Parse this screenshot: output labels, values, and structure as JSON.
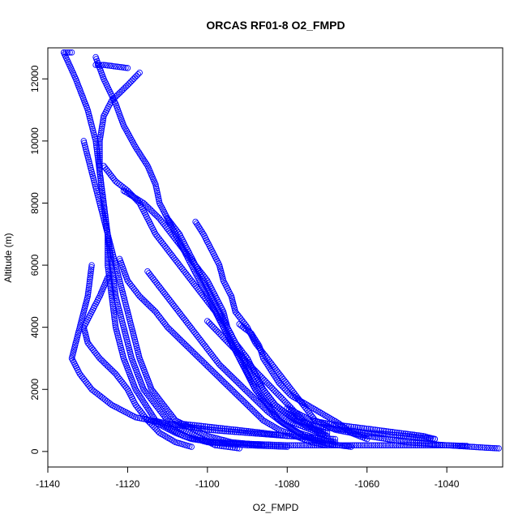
{
  "chart_data": {
    "type": "scatter",
    "title": "ORCAS RF01-8 O2_FMPD",
    "xlabel": "O2_FMPD",
    "ylabel": "Altitude (m)",
    "xlim": [
      -1140,
      -1026
    ],
    "ylim": [
      -500,
      13000
    ],
    "x_ticks": [
      -1140,
      -1120,
      -1100,
      -1080,
      -1060,
      -1040
    ],
    "y_ticks": [
      0,
      2000,
      4000,
      6000,
      8000,
      10000,
      12000
    ],
    "x_tick_labels": [
      "-1140",
      "-1120",
      "-1100",
      "-1080",
      "-1060",
      "-1040"
    ],
    "y_tick_labels": [
      "0",
      "2000",
      "4000",
      "6000",
      "8000",
      "10000",
      "12000"
    ],
    "marker": "open-circle",
    "color": "#0000ff",
    "grid": false,
    "legend": "none",
    "series": [
      {
        "profiles": [
          [
            [
              -1136,
              12850
            ],
            [
              -1133,
              12000
            ],
            [
              -1130,
              11000
            ],
            [
              -1128,
              10000
            ],
            [
              -1127,
              9000
            ],
            [
              -1126,
              8000
            ],
            [
              -1125,
              7000
            ],
            [
              -1124,
              6000
            ],
            [
              -1123,
              5000
            ],
            [
              -1121,
              4000
            ],
            [
              -1119,
              3000
            ],
            [
              -1116,
              2000
            ],
            [
              -1110,
              1000
            ],
            [
              -1103,
              500
            ],
            [
              -1098,
              200
            ],
            [
              -1092,
              100
            ]
          ],
          [
            [
              -1128,
              12700
            ],
            [
              -1126,
              12000
            ],
            [
              -1123,
              11200
            ],
            [
              -1121,
              10500
            ],
            [
              -1118,
              9800
            ],
            [
              -1115,
              9200
            ],
            [
              -1113,
              8600
            ],
            [
              -1112,
              8000
            ],
            [
              -1108,
              7000
            ],
            [
              -1104,
              6000
            ],
            [
              -1100,
              5000
            ],
            [
              -1096,
              4000
            ],
            [
              -1092,
              3000
            ],
            [
              -1088,
              2000
            ],
            [
              -1082,
              1000
            ],
            [
              -1076,
              500
            ],
            [
              -1070,
              250
            ],
            [
              -1064,
              150
            ]
          ],
          [
            [
              -1117,
              12200
            ],
            [
              -1120,
              11800
            ],
            [
              -1124,
              11300
            ],
            [
              -1126,
              10800
            ],
            [
              -1127,
              10000
            ],
            [
              -1127,
              9000
            ],
            [
              -1126,
              8000
            ],
            [
              -1125,
              7000
            ],
            [
              -1125,
              6000
            ],
            [
              -1124,
              5000
            ],
            [
              -1123,
              4000
            ],
            [
              -1121,
              3000
            ],
            [
              -1118,
              2000
            ],
            [
              -1113,
              1000
            ],
            [
              -1106,
              500
            ],
            [
              -1100,
              300
            ],
            [
              -1090,
              200
            ],
            [
              -1080,
              150
            ]
          ],
          [
            [
              -1131,
              10000
            ],
            [
              -1129,
              9000
            ],
            [
              -1127,
              8000
            ],
            [
              -1125,
              7000
            ],
            [
              -1123,
              6000
            ],
            [
              -1121,
              5000
            ],
            [
              -1119,
              4000
            ],
            [
              -1117,
              3000
            ],
            [
              -1114,
              2000
            ],
            [
              -1108,
              1000
            ],
            [
              -1100,
              500
            ],
            [
              -1094,
              300
            ],
            [
              -1086,
              200
            ]
          ],
          [
            [
              -1126,
              9200
            ],
            [
              -1123,
              8700
            ],
            [
              -1120,
              8400
            ],
            [
              -1117,
              8000
            ],
            [
              -1115,
              7500
            ],
            [
              -1113,
              7000
            ],
            [
              -1110,
              6500
            ],
            [
              -1107,
              6000
            ],
            [
              -1104,
              5500
            ],
            [
              -1101,
              5000
            ],
            [
              -1098,
              4500
            ],
            [
              -1096,
              4000
            ],
            [
              -1094,
              3500
            ],
            [
              -1092,
              3000
            ],
            [
              -1090,
              2500
            ],
            [
              -1088,
              2000
            ],
            [
              -1085,
              1500
            ],
            [
              -1080,
              1000
            ],
            [
              -1074,
              700
            ],
            [
              -1070,
              500
            ]
          ],
          [
            [
              -1121,
              8400
            ],
            [
              -1116,
              8000
            ],
            [
              -1112,
              7500
            ],
            [
              -1109,
              7000
            ],
            [
              -1106,
              6500
            ],
            [
              -1103,
              6000
            ],
            [
              -1100,
              5500
            ],
            [
              -1098,
              5000
            ],
            [
              -1096,
              4500
            ],
            [
              -1095,
              4000
            ],
            [
              -1093,
              3500
            ],
            [
              -1090,
              3000
            ],
            [
              -1088,
              2500
            ],
            [
              -1086,
              2000
            ],
            [
              -1083,
              1500
            ],
            [
              -1078,
              1000
            ],
            [
              -1072,
              800
            ],
            [
              -1066,
              700
            ],
            [
              -1060,
              600
            ],
            [
              -1050,
              500
            ],
            [
              -1043,
              400
            ]
          ],
          [
            [
              -1110,
              7500
            ],
            [
              -1107,
              7000
            ],
            [
              -1105,
              6500
            ],
            [
              -1103,
              6000
            ],
            [
              -1101,
              5500
            ],
            [
              -1099,
              5000
            ],
            [
              -1097,
              4500
            ],
            [
              -1095,
              4000
            ],
            [
              -1093,
              3500
            ],
            [
              -1091,
              3000
            ],
            [
              -1089,
              2500
            ],
            [
              -1086,
              2000
            ],
            [
              -1083,
              1500
            ],
            [
              -1080,
              1200
            ],
            [
              -1075,
              800
            ],
            [
              -1070,
              600
            ]
          ],
          [
            [
              -1103,
              7400
            ],
            [
              -1101,
              7000
            ],
            [
              -1099,
              6500
            ],
            [
              -1097,
              6000
            ],
            [
              -1096,
              5500
            ],
            [
              -1094,
              5000
            ],
            [
              -1093,
              4500
            ],
            [
              -1090,
              4000
            ],
            [
              -1088,
              3500
            ],
            [
              -1085,
              3000
            ],
            [
              -1082,
              2500
            ],
            [
              -1079,
              2000
            ],
            [
              -1076,
              1500
            ],
            [
              -1073,
              1000
            ],
            [
              -1068,
              700
            ],
            [
              -1060,
              500
            ],
            [
              -1050,
              300
            ],
            [
              -1040,
              200
            ],
            [
              -1030,
              120
            ],
            [
              -1027,
              100
            ]
          ],
          [
            [
              -1129,
              6000
            ],
            [
              -1130,
              5000
            ],
            [
              -1131,
              4500
            ],
            [
              -1132,
              4000
            ],
            [
              -1133,
              3500
            ],
            [
              -1134,
              3000
            ],
            [
              -1132,
              2500
            ],
            [
              -1129,
              2000
            ],
            [
              -1124,
              1500
            ],
            [
              -1118,
              1100
            ],
            [
              -1110,
              900
            ],
            [
              -1100,
              700
            ],
            [
              -1090,
              600
            ],
            [
              -1080,
              500
            ]
          ],
          [
            [
              -1125,
              5600
            ],
            [
              -1127,
              5000
            ],
            [
              -1129,
              4500
            ],
            [
              -1131,
              4000
            ],
            [
              -1130,
              3500
            ],
            [
              -1127,
              3000
            ],
            [
              -1123,
              2500
            ],
            [
              -1120,
              2000
            ],
            [
              -1118,
              1500
            ],
            [
              -1115,
              1000
            ],
            [
              -1112,
              600
            ],
            [
              -1108,
              300
            ],
            [
              -1104,
              150
            ]
          ],
          [
            [
              -1122,
              6200
            ],
            [
              -1120,
              5500
            ],
            [
              -1117,
              5000
            ],
            [
              -1113,
              4500
            ],
            [
              -1110,
              4000
            ],
            [
              -1106,
              3500
            ],
            [
              -1102,
              3000
            ],
            [
              -1098,
              2500
            ],
            [
              -1094,
              2000
            ],
            [
              -1090,
              1500
            ],
            [
              -1086,
              1000
            ],
            [
              -1082,
              700
            ],
            [
              -1078,
              500
            ],
            [
              -1074,
              300
            ],
            [
              -1070,
              200
            ]
          ],
          [
            [
              -1115,
              5800
            ],
            [
              -1112,
              5300
            ],
            [
              -1109,
              4800
            ],
            [
              -1106,
              4300
            ],
            [
              -1103,
              3800
            ],
            [
              -1100,
              3300
            ],
            [
              -1097,
              2800
            ],
            [
              -1093,
              2300
            ],
            [
              -1089,
              1800
            ],
            [
              -1085,
              1300
            ],
            [
              -1081,
              900
            ],
            [
              -1077,
              600
            ],
            [
              -1072,
              400
            ],
            [
              -1068,
              300
            ]
          ],
          [
            [
              -1100,
              4200
            ],
            [
              -1097,
              3800
            ],
            [
              -1094,
              3400
            ],
            [
              -1091,
              3000
            ],
            [
              -1088,
              2600
            ],
            [
              -1085,
              2200
            ],
            [
              -1082,
              1800
            ],
            [
              -1079,
              1400
            ],
            [
              -1076,
              1000
            ],
            [
              -1073,
              700
            ],
            [
              -1070,
              500
            ]
          ],
          [
            [
              -1092,
              4100
            ],
            [
              -1089,
              3800
            ],
            [
              -1087,
              3400
            ],
            [
              -1086,
              3000
            ],
            [
              -1084,
              2600
            ],
            [
              -1082,
              2200
            ],
            [
              -1079,
              1800
            ],
            [
              -1075,
              1500
            ],
            [
              -1071,
              1200
            ],
            [
              -1067,
              900
            ],
            [
              -1064,
              600
            ],
            [
              -1060,
              400
            ]
          ],
          [
            [
              -1080,
              1400
            ],
            [
              -1074,
              1000
            ],
            [
              -1070,
              900
            ],
            [
              -1064,
              800
            ],
            [
              -1058,
              700
            ],
            [
              -1052,
              600
            ],
            [
              -1046,
              500
            ],
            [
              -1043,
              400
            ]
          ],
          [
            [
              -1107,
              900
            ],
            [
              -1100,
              800
            ],
            [
              -1093,
              700
            ],
            [
              -1086,
              600
            ],
            [
              -1080,
              500
            ],
            [
              -1074,
              450
            ],
            [
              -1068,
              400
            ]
          ],
          [
            [
              -1114,
              1000
            ],
            [
              -1108,
              600
            ],
            [
              -1104,
              400
            ],
            [
              -1098,
              300
            ],
            [
              -1090,
              250
            ],
            [
              -1080,
              200
            ],
            [
              -1070,
              200
            ],
            [
              -1060,
              200
            ],
            [
              -1050,
              200
            ],
            [
              -1040,
              200
            ],
            [
              -1035,
              180
            ]
          ],
          [
            [
              -1120,
              12350
            ],
            [
              -1123,
              12400
            ],
            [
              -1126,
              12450
            ],
            [
              -1128,
              12450
            ]
          ],
          [
            [
              -1136,
              12850
            ],
            [
              -1135,
              12850
            ],
            [
              -1134,
              12850
            ]
          ]
        ]
      }
    ]
  }
}
